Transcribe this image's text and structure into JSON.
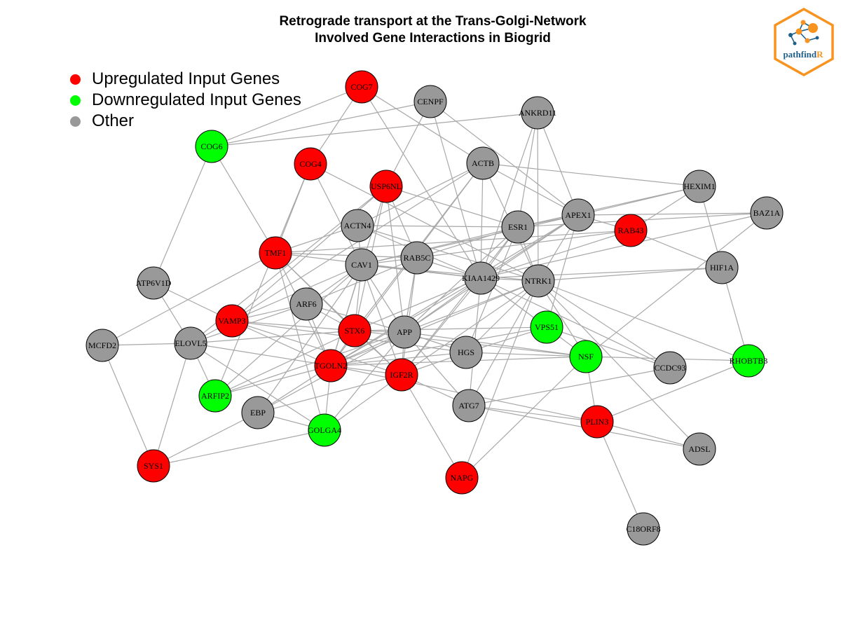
{
  "title": {
    "line1": "Retrograde transport at the Trans-Golgi-Network",
    "line2": "Involved Gene Interactions in Biogrid"
  },
  "legend": [
    {
      "label": "Upregulated Input Genes",
      "color": "#ff0000"
    },
    {
      "label": "Downregulated Input Genes",
      "color": "#00ff00"
    },
    {
      "label": "Other",
      "color": "#999999"
    }
  ],
  "logo": {
    "text_main": "pathfind",
    "text_accent": "R",
    "accent_color": "#f7931e",
    "main_color": "#1f5f8b"
  },
  "colors": {
    "up": "#ff0000",
    "down": "#00ff00",
    "other": "#999999",
    "edge": "#a8a8a8"
  },
  "nodes": [
    {
      "id": "COG7",
      "status": "up"
    },
    {
      "id": "CENPF",
      "status": "other"
    },
    {
      "id": "ANKRD11",
      "status": "other"
    },
    {
      "id": "COG6",
      "status": "down"
    },
    {
      "id": "COG4",
      "status": "up"
    },
    {
      "id": "ACTB",
      "status": "other"
    },
    {
      "id": "USP6NL",
      "status": "up"
    },
    {
      "id": "HEXIM1",
      "status": "other"
    },
    {
      "id": "BAZ1A",
      "status": "other"
    },
    {
      "id": "APEX1",
      "status": "other"
    },
    {
      "id": "ACTN4",
      "status": "other"
    },
    {
      "id": "ESR1",
      "status": "other"
    },
    {
      "id": "RAB43",
      "status": "up"
    },
    {
      "id": "TMF1",
      "status": "up"
    },
    {
      "id": "RAB5C",
      "status": "other"
    },
    {
      "id": "CAV1",
      "status": "other"
    },
    {
      "id": "HIF1A",
      "status": "other"
    },
    {
      "id": "KIAA1429",
      "status": "other"
    },
    {
      "id": "NTRK1",
      "status": "other"
    },
    {
      "id": "ATP6V1D",
      "status": "other"
    },
    {
      "id": "ARF6",
      "status": "other"
    },
    {
      "id": "VAMP3",
      "status": "up"
    },
    {
      "id": "VPS51",
      "status": "down"
    },
    {
      "id": "STX6",
      "status": "up"
    },
    {
      "id": "APP",
      "status": "other"
    },
    {
      "id": "MCFD2",
      "status": "other"
    },
    {
      "id": "ELOVL5",
      "status": "other"
    },
    {
      "id": "HGS",
      "status": "other"
    },
    {
      "id": "NSF",
      "status": "down"
    },
    {
      "id": "RHOBTB3",
      "status": "down"
    },
    {
      "id": "CCDC93",
      "status": "other"
    },
    {
      "id": "TGOLN2",
      "status": "up"
    },
    {
      "id": "IGF2R",
      "status": "up"
    },
    {
      "id": "ARFIP2",
      "status": "down"
    },
    {
      "id": "EBP",
      "status": "other"
    },
    {
      "id": "ATG7",
      "status": "other"
    },
    {
      "id": "GOLGA4",
      "status": "down"
    },
    {
      "id": "PLIN3",
      "status": "up"
    },
    {
      "id": "ADSL",
      "status": "other"
    },
    {
      "id": "SYS1",
      "status": "up"
    },
    {
      "id": "NAPG",
      "status": "up"
    },
    {
      "id": "C18ORF8",
      "status": "other"
    }
  ],
  "edges": [
    [
      "COG7",
      "COG6"
    ],
    [
      "COG7",
      "COG4"
    ],
    [
      "COG7",
      "ACTB"
    ],
    [
      "COG7",
      "KIAA1429"
    ],
    [
      "CENPF",
      "COG6"
    ],
    [
      "CENPF",
      "USP6NL"
    ],
    [
      "CENPF",
      "KIAA1429"
    ],
    [
      "CENPF",
      "APEX1"
    ],
    [
      "ANKRD11",
      "COG6"
    ],
    [
      "ANKRD11",
      "KIAA1429"
    ],
    [
      "ANKRD11",
      "NTRK1"
    ],
    [
      "ANKRD11",
      "ESR1"
    ],
    [
      "ANKRD11",
      "APEX1"
    ],
    [
      "COG6",
      "ATP6V1D"
    ],
    [
      "COG6",
      "TMF1"
    ],
    [
      "COG4",
      "TMF1"
    ],
    [
      "COG4",
      "CAV1"
    ],
    [
      "COG4",
      "ARFIP2"
    ],
    [
      "COG4",
      "NTRK1"
    ],
    [
      "ACTB",
      "ACTN4"
    ],
    [
      "ACTB",
      "HEXIM1"
    ],
    [
      "ACTB",
      "APEX1"
    ],
    [
      "ACTB",
      "KIAA1429"
    ],
    [
      "ACTB",
      "NTRK1"
    ],
    [
      "ACTB",
      "TGOLN2"
    ],
    [
      "ACTB",
      "STX6"
    ],
    [
      "ACTB",
      "VAMP3"
    ],
    [
      "USP6NL",
      "RAB5C"
    ],
    [
      "USP6NL",
      "APP"
    ],
    [
      "USP6NL",
      "TGOLN2"
    ],
    [
      "USP6NL",
      "ESR1"
    ],
    [
      "USP6NL",
      "VAMP3"
    ],
    [
      "USP6NL",
      "ELOVL5"
    ],
    [
      "USP6NL",
      "STX6"
    ],
    [
      "HEXIM1",
      "APEX1"
    ],
    [
      "HEXIM1",
      "HIF1A"
    ],
    [
      "HEXIM1",
      "ESR1"
    ],
    [
      "HEXIM1",
      "RAB43"
    ],
    [
      "BAZ1A",
      "APEX1"
    ],
    [
      "BAZ1A",
      "ESR1"
    ],
    [
      "BAZ1A",
      "KIAA1429"
    ],
    [
      "BAZ1A",
      "NSF"
    ],
    [
      "APEX1",
      "ESR1"
    ],
    [
      "APEX1",
      "KIAA1429"
    ],
    [
      "APEX1",
      "NTRK1"
    ],
    [
      "APEX1",
      "CAV1"
    ],
    [
      "APEX1",
      "TGOLN2"
    ],
    [
      "APEX1",
      "VPS51"
    ],
    [
      "APEX1",
      "RAB43"
    ],
    [
      "APEX1",
      "APP"
    ],
    [
      "ACTN4",
      "ESR1"
    ],
    [
      "ACTN4",
      "CAV1"
    ],
    [
      "ACTN4",
      "TMF1"
    ],
    [
      "ACTN4",
      "NTRK1"
    ],
    [
      "ACTN4",
      "KIAA1429"
    ],
    [
      "ESR1",
      "CAV1"
    ],
    [
      "ESR1",
      "KIAA1429"
    ],
    [
      "ESR1",
      "NTRK1"
    ],
    [
      "ESR1",
      "APP"
    ],
    [
      "ESR1",
      "RAB5C"
    ],
    [
      "ESR1",
      "HGS"
    ],
    [
      "ESR1",
      "IGF2R"
    ],
    [
      "RAB43",
      "RAB5C"
    ],
    [
      "RAB43",
      "KIAA1429"
    ],
    [
      "RAB43",
      "HIF1A"
    ],
    [
      "RAB43",
      "TMF1"
    ],
    [
      "TMF1",
      "KIAA1429"
    ],
    [
      "TMF1",
      "STX6"
    ],
    [
      "TMF1",
      "TGOLN2"
    ],
    [
      "TMF1",
      "IGF2R"
    ],
    [
      "TMF1",
      "RAB5C"
    ],
    [
      "TMF1",
      "MCFD2"
    ],
    [
      "TMF1",
      "GOLGA4"
    ],
    [
      "RAB5C",
      "KIAA1429"
    ],
    [
      "RAB5C",
      "CAV1"
    ],
    [
      "RAB5C",
      "IGF2R"
    ],
    [
      "RAB5C",
      "APP"
    ],
    [
      "RAB5C",
      "ARF6"
    ],
    [
      "CAV1",
      "KIAA1429"
    ],
    [
      "CAV1",
      "NTRK1"
    ],
    [
      "CAV1",
      "APP"
    ],
    [
      "CAV1",
      "ARF6"
    ],
    [
      "CAV1",
      "VAMP3"
    ],
    [
      "CAV1",
      "STX6"
    ],
    [
      "CAV1",
      "TGOLN2"
    ],
    [
      "CAV1",
      "IGF2R"
    ],
    [
      "CAV1",
      "EBP"
    ],
    [
      "CAV1",
      "ARFIP2"
    ],
    [
      "HIF1A",
      "KIAA1429"
    ],
    [
      "HIF1A",
      "NTRK1"
    ],
    [
      "HIF1A",
      "RHOBTB3"
    ],
    [
      "KIAA1429",
      "NTRK1"
    ],
    [
      "KIAA1429",
      "APP"
    ],
    [
      "KIAA1429",
      "VPS51"
    ],
    [
      "KIAA1429",
      "NSF"
    ],
    [
      "KIAA1429",
      "CCDC93"
    ],
    [
      "KIAA1429",
      "TGOLN2"
    ],
    [
      "KIAA1429",
      "ATG7"
    ],
    [
      "KIAA1429",
      "STX6"
    ],
    [
      "KIAA1429",
      "IGF2R"
    ],
    [
      "NTRK1",
      "APP"
    ],
    [
      "NTRK1",
      "NSF"
    ],
    [
      "NTRK1",
      "HGS"
    ],
    [
      "NTRK1",
      "ATG7"
    ],
    [
      "NTRK1",
      "TGOLN2"
    ],
    [
      "NTRK1",
      "IGF2R"
    ],
    [
      "NTRK1",
      "ADSL"
    ],
    [
      "NTRK1",
      "RHOBTB3"
    ],
    [
      "NTRK1",
      "NAPG"
    ],
    [
      "NTRK1",
      "CCDC93"
    ],
    [
      "ATP6V1D",
      "VAMP3"
    ],
    [
      "ATP6V1D",
      "ELOVL5"
    ],
    [
      "ARF6",
      "VAMP3"
    ],
    [
      "ARF6",
      "STX6"
    ],
    [
      "ARF6",
      "APP"
    ],
    [
      "ARF6",
      "TGOLN2"
    ],
    [
      "ARF6",
      "ELOVL5"
    ],
    [
      "VAMP3",
      "STX6"
    ],
    [
      "VAMP3",
      "TGOLN2"
    ],
    [
      "VAMP3",
      "IGF2R"
    ],
    [
      "VAMP3",
      "ELOVL5"
    ],
    [
      "VAMP3",
      "HGS"
    ],
    [
      "VPS51",
      "STX6"
    ],
    [
      "VPS51",
      "TGOLN2"
    ],
    [
      "VPS51",
      "CCDC93"
    ],
    [
      "VPS51",
      "HGS"
    ],
    [
      "STX6",
      "APP"
    ],
    [
      "STX6",
      "TGOLN2"
    ],
    [
      "STX6",
      "IGF2R"
    ],
    [
      "STX6",
      "NSF"
    ],
    [
      "STX6",
      "ELOVL5"
    ],
    [
      "STX6",
      "ARFIP2"
    ],
    [
      "APP",
      "HGS"
    ],
    [
      "APP",
      "TGOLN2"
    ],
    [
      "APP",
      "IGF2R"
    ],
    [
      "APP",
      "ATG7"
    ],
    [
      "APP",
      "EBP"
    ],
    [
      "APP",
      "NSF"
    ],
    [
      "APP",
      "GOLGA4"
    ],
    [
      "APP",
      "ARFIP2"
    ],
    [
      "MCFD2",
      "ELOVL5"
    ],
    [
      "MCFD2",
      "SYS1"
    ],
    [
      "ELOVL5",
      "TGOLN2"
    ],
    [
      "ELOVL5",
      "GOLGA4"
    ],
    [
      "ELOVL5",
      "ARFIP2"
    ],
    [
      "ELOVL5",
      "SYS1"
    ],
    [
      "HGS",
      "TGOLN2"
    ],
    [
      "HGS",
      "IGF2R"
    ],
    [
      "HGS",
      "NSF"
    ],
    [
      "NSF",
      "RHOBTB3"
    ],
    [
      "NSF",
      "NAPG"
    ],
    [
      "NSF",
      "PLIN3"
    ],
    [
      "NSF",
      "TGOLN2"
    ],
    [
      "RHOBTB3",
      "PLIN3"
    ],
    [
      "TGOLN2",
      "IGF2R"
    ],
    [
      "TGOLN2",
      "GOLGA4"
    ],
    [
      "TGOLN2",
      "EBP"
    ],
    [
      "TGOLN2",
      "ARFIP2"
    ],
    [
      "TGOLN2",
      "PLIN3"
    ],
    [
      "IGF2R",
      "NAPG"
    ],
    [
      "IGF2R",
      "ATG7"
    ],
    [
      "IGF2R",
      "GOLGA4"
    ],
    [
      "IGF2R",
      "EBP"
    ],
    [
      "ATG7",
      "PLIN3"
    ],
    [
      "ATG7",
      "ADSL"
    ],
    [
      "ATG7",
      "CCDC93"
    ],
    [
      "GOLGA4",
      "SYS1"
    ],
    [
      "GOLGA4",
      "EBP"
    ],
    [
      "PLIN3",
      "ADSL"
    ],
    [
      "PLIN3",
      "C18ORF8"
    ],
    [
      "SYS1",
      "EBP"
    ]
  ]
}
